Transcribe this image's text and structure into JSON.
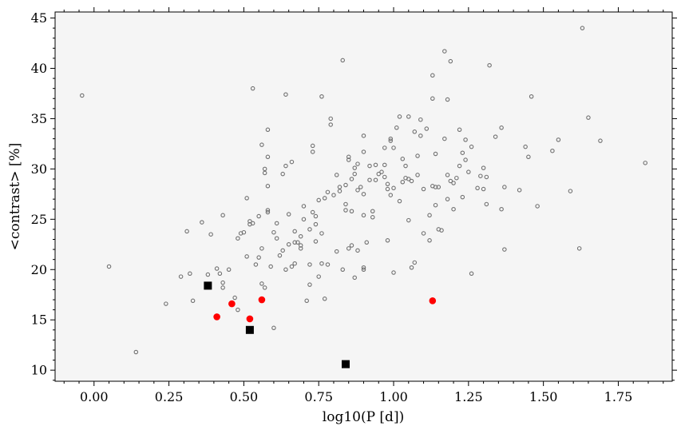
{
  "chart_data": {
    "type": "scatter",
    "xlabel": "log10(P [d])",
    "ylabel": "<contrast> [%]",
    "xlim": [
      -0.13,
      1.93
    ],
    "ylim": [
      8.9,
      45.6
    ],
    "xticks": [
      "0.00",
      "0.25",
      "0.50",
      "0.75",
      "1.00",
      "1.25",
      "1.50",
      "1.75"
    ],
    "yticks": [
      "10",
      "15",
      "20",
      "25",
      "30",
      "35",
      "40",
      "45"
    ],
    "grid": false,
    "legend": "none",
    "colors": {
      "background": "#f5f5f5",
      "open_marker": "#707070",
      "highlight_red": "#ff0000",
      "square": "#000000"
    },
    "series": [
      {
        "marker": "open-circle",
        "points": [
          [
            -0.04,
            37.3
          ],
          [
            0.05,
            20.3
          ],
          [
            0.14,
            11.8
          ],
          [
            0.24,
            16.6
          ],
          [
            0.29,
            19.3
          ],
          [
            0.31,
            23.8
          ],
          [
            0.32,
            19.6
          ],
          [
            0.33,
            16.9
          ],
          [
            0.36,
            24.7
          ],
          [
            0.38,
            19.5
          ],
          [
            0.39,
            23.5
          ],
          [
            0.41,
            20.1
          ],
          [
            0.42,
            19.6
          ],
          [
            0.43,
            18.7
          ],
          [
            0.43,
            18.2
          ],
          [
            0.43,
            25.4
          ],
          [
            0.45,
            20.0
          ],
          [
            0.47,
            17.2
          ],
          [
            0.48,
            16.0
          ],
          [
            0.48,
            23.1
          ],
          [
            0.49,
            23.6
          ],
          [
            0.5,
            23.7
          ],
          [
            0.51,
            21.3
          ],
          [
            0.51,
            27.1
          ],
          [
            0.52,
            24.5
          ],
          [
            0.52,
            24.8
          ],
          [
            0.53,
            38.0
          ],
          [
            0.53,
            24.6
          ],
          [
            0.54,
            20.5
          ],
          [
            0.55,
            25.3
          ],
          [
            0.55,
            21.2
          ],
          [
            0.56,
            22.1
          ],
          [
            0.56,
            18.6
          ],
          [
            0.56,
            32.4
          ],
          [
            0.57,
            29.6
          ],
          [
            0.57,
            30.0
          ],
          [
            0.57,
            18.2
          ],
          [
            0.58,
            31.2
          ],
          [
            0.58,
            33.9
          ],
          [
            0.58,
            28.3
          ],
          [
            0.58,
            25.7
          ],
          [
            0.58,
            25.9
          ],
          [
            0.59,
            20.3
          ],
          [
            0.6,
            14.2
          ],
          [
            0.6,
            23.7
          ],
          [
            0.61,
            23.1
          ],
          [
            0.61,
            24.6
          ],
          [
            0.62,
            21.4
          ],
          [
            0.63,
            29.5
          ],
          [
            0.63,
            21.9
          ],
          [
            0.64,
            30.3
          ],
          [
            0.64,
            20.0
          ],
          [
            0.64,
            37.4
          ],
          [
            0.65,
            25.5
          ],
          [
            0.65,
            22.5
          ],
          [
            0.66,
            20.3
          ],
          [
            0.66,
            30.7
          ],
          [
            0.67,
            20.6
          ],
          [
            0.67,
            22.7
          ],
          [
            0.67,
            23.8
          ],
          [
            0.68,
            22.7
          ],
          [
            0.69,
            23.3
          ],
          [
            0.69,
            22.4
          ],
          [
            0.69,
            22.1
          ],
          [
            0.7,
            25.0
          ],
          [
            0.7,
            26.3
          ],
          [
            0.71,
            16.9
          ],
          [
            0.72,
            20.5
          ],
          [
            0.72,
            18.5
          ],
          [
            0.72,
            24.0
          ],
          [
            0.73,
            32.3
          ],
          [
            0.73,
            31.7
          ],
          [
            0.73,
            25.7
          ],
          [
            0.74,
            22.8
          ],
          [
            0.74,
            25.3
          ],
          [
            0.74,
            24.5
          ],
          [
            0.75,
            19.3
          ],
          [
            0.75,
            26.9
          ],
          [
            0.76,
            37.2
          ],
          [
            0.76,
            20.6
          ],
          [
            0.76,
            23.6
          ],
          [
            0.77,
            27.1
          ],
          [
            0.77,
            17.1
          ],
          [
            0.78,
            20.5
          ],
          [
            0.78,
            27.7
          ],
          [
            0.79,
            35.0
          ],
          [
            0.79,
            34.4
          ],
          [
            0.8,
            27.4
          ],
          [
            0.81,
            21.8
          ],
          [
            0.81,
            29.4
          ],
          [
            0.82,
            27.8
          ],
          [
            0.82,
            28.2
          ],
          [
            0.83,
            20.0
          ],
          [
            0.83,
            40.8
          ],
          [
            0.84,
            25.9
          ],
          [
            0.84,
            26.5
          ],
          [
            0.84,
            28.4
          ],
          [
            0.85,
            30.9
          ],
          [
            0.85,
            22.1
          ],
          [
            0.85,
            31.2
          ],
          [
            0.86,
            29.0
          ],
          [
            0.86,
            22.4
          ],
          [
            0.86,
            25.8
          ],
          [
            0.87,
            19.2
          ],
          [
            0.87,
            29.5
          ],
          [
            0.87,
            30.1
          ],
          [
            0.88,
            30.5
          ],
          [
            0.88,
            21.9
          ],
          [
            0.88,
            27.9
          ],
          [
            0.89,
            28.2
          ],
          [
            0.9,
            27.5
          ],
          [
            0.9,
            33.3
          ],
          [
            0.9,
            31.7
          ],
          [
            0.9,
            25.4
          ],
          [
            0.9,
            20.0
          ],
          [
            0.9,
            20.2
          ],
          [
            0.91,
            22.7
          ],
          [
            0.92,
            28.9
          ],
          [
            0.92,
            30.3
          ],
          [
            0.93,
            25.2
          ],
          [
            0.93,
            25.8
          ],
          [
            0.94,
            30.4
          ],
          [
            0.94,
            28.9
          ],
          [
            0.95,
            29.5
          ],
          [
            0.96,
            29.7
          ],
          [
            0.97,
            32.1
          ],
          [
            0.97,
            29.2
          ],
          [
            0.97,
            30.4
          ],
          [
            0.98,
            22.9
          ],
          [
            0.98,
            28.0
          ],
          [
            0.98,
            28.5
          ],
          [
            0.99,
            32.8
          ],
          [
            0.99,
            33.0
          ],
          [
            0.99,
            27.4
          ],
          [
            1.0,
            28.1
          ],
          [
            1.0,
            32.1
          ],
          [
            1.0,
            19.7
          ],
          [
            1.01,
            34.1
          ],
          [
            1.02,
            35.2
          ],
          [
            1.02,
            26.8
          ],
          [
            1.03,
            31.0
          ],
          [
            1.03,
            28.7
          ],
          [
            1.04,
            29.1
          ],
          [
            1.04,
            30.3
          ],
          [
            1.05,
            35.2
          ],
          [
            1.05,
            29.0
          ],
          [
            1.05,
            24.9
          ],
          [
            1.06,
            20.2
          ],
          [
            1.06,
            28.8
          ],
          [
            1.07,
            20.7
          ],
          [
            1.07,
            33.7
          ],
          [
            1.08,
            29.4
          ],
          [
            1.08,
            31.3
          ],
          [
            1.09,
            33.3
          ],
          [
            1.09,
            34.9
          ],
          [
            1.1,
            28.0
          ],
          [
            1.1,
            23.6
          ],
          [
            1.11,
            34.0
          ],
          [
            1.12,
            22.9
          ],
          [
            1.12,
            25.4
          ],
          [
            1.13,
            37.0
          ],
          [
            1.13,
            39.3
          ],
          [
            1.13,
            28.3
          ],
          [
            1.14,
            26.4
          ],
          [
            1.14,
            28.2
          ],
          [
            1.14,
            31.5
          ],
          [
            1.15,
            28.2
          ],
          [
            1.15,
            24.0
          ],
          [
            1.16,
            23.9
          ],
          [
            1.17,
            41.7
          ],
          [
            1.17,
            33.0
          ],
          [
            1.18,
            29.4
          ],
          [
            1.18,
            27.0
          ],
          [
            1.18,
            36.9
          ],
          [
            1.19,
            40.7
          ],
          [
            1.19,
            28.8
          ],
          [
            1.2,
            28.6
          ],
          [
            1.2,
            26.0
          ],
          [
            1.21,
            29.1
          ],
          [
            1.22,
            33.9
          ],
          [
            1.22,
            30.3
          ],
          [
            1.23,
            27.2
          ],
          [
            1.23,
            31.6
          ],
          [
            1.24,
            32.9
          ],
          [
            1.24,
            30.9
          ],
          [
            1.25,
            29.7
          ],
          [
            1.26,
            32.2
          ],
          [
            1.26,
            19.6
          ],
          [
            1.28,
            28.1
          ],
          [
            1.29,
            29.3
          ],
          [
            1.3,
            30.1
          ],
          [
            1.3,
            28.0
          ],
          [
            1.31,
            26.5
          ],
          [
            1.31,
            29.2
          ],
          [
            1.32,
            40.3
          ],
          [
            1.34,
            33.2
          ],
          [
            1.36,
            34.1
          ],
          [
            1.36,
            26.0
          ],
          [
            1.37,
            28.2
          ],
          [
            1.37,
            22.0
          ],
          [
            1.42,
            27.9
          ],
          [
            1.44,
            32.2
          ],
          [
            1.45,
            31.2
          ],
          [
            1.46,
            37.2
          ],
          [
            1.48,
            26.3
          ],
          [
            1.53,
            31.8
          ],
          [
            1.55,
            32.9
          ],
          [
            1.59,
            27.8
          ],
          [
            1.62,
            22.1
          ],
          [
            1.63,
            44.0
          ],
          [
            1.65,
            35.1
          ],
          [
            1.69,
            32.8
          ],
          [
            1.84,
            30.6
          ]
        ]
      },
      {
        "marker": "filled-circle-red",
        "points": [
          [
            0.41,
            15.3
          ],
          [
            0.46,
            16.6
          ],
          [
            0.52,
            15.1
          ],
          [
            0.56,
            17.0
          ],
          [
            1.13,
            16.9
          ]
        ]
      },
      {
        "marker": "filled-square-black",
        "points": [
          [
            0.38,
            18.4
          ],
          [
            0.52,
            14.0
          ],
          [
            0.84,
            10.6
          ]
        ]
      }
    ]
  }
}
